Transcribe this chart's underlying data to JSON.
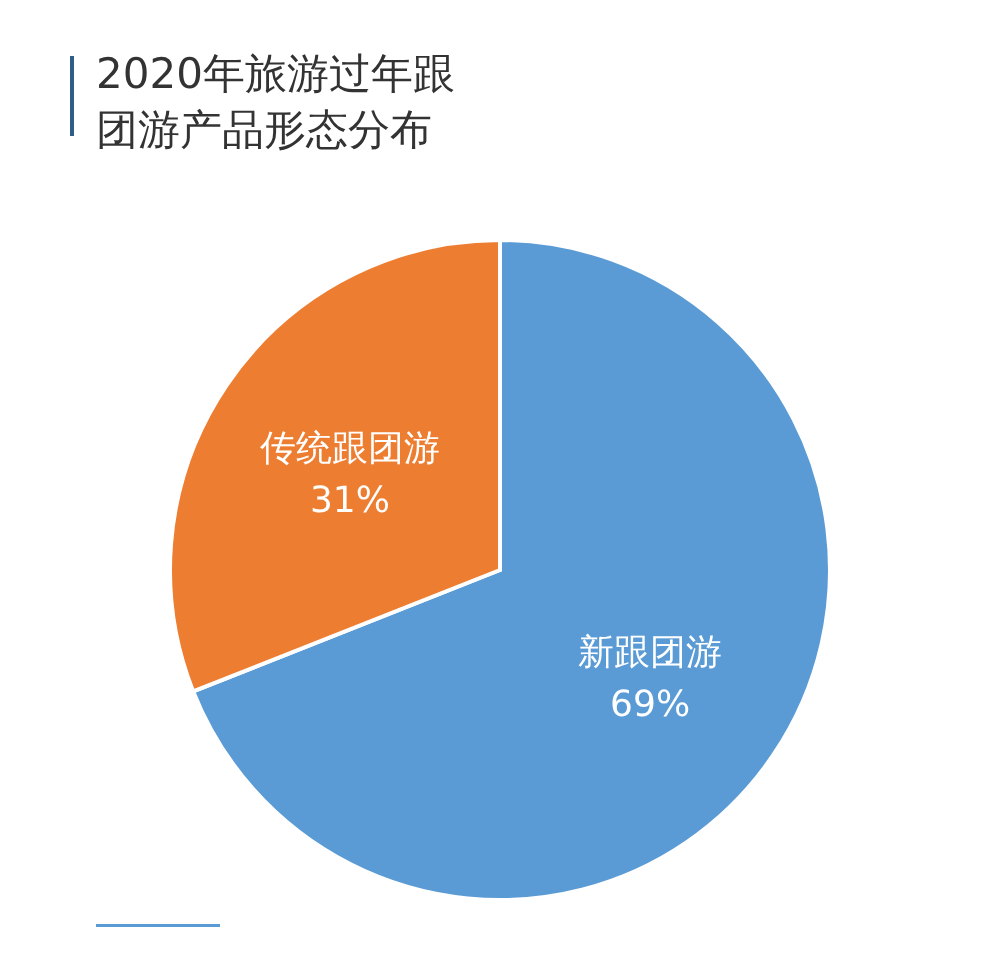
{
  "chart_data": {
    "type": "pie",
    "title": "2020年旅游过年跟团游产品形态分布",
    "categories": [
      "新跟团游",
      "传统跟团游"
    ],
    "values": [
      69,
      31
    ],
    "colors": [
      "#5b9bd5",
      "#ed7d31"
    ],
    "value_labels": [
      "69%",
      "31%"
    ]
  }
}
